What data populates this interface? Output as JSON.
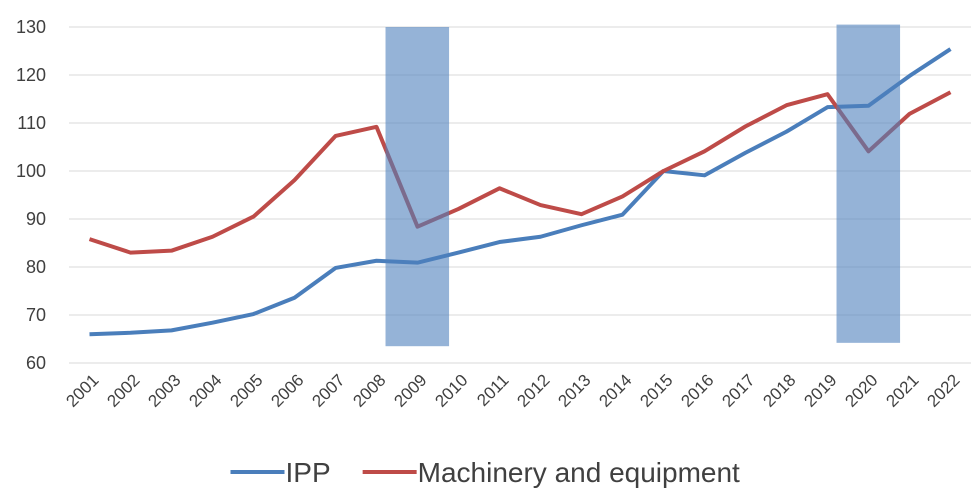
{
  "chart_data": {
    "type": "line",
    "categories": [
      "2001",
      "2002",
      "2003",
      "2004",
      "2005",
      "2006",
      "2007",
      "2008",
      "2009",
      "2010",
      "2011",
      "2012",
      "2013",
      "2014",
      "2015",
      "2016",
      "2017",
      "2018",
      "2019",
      "2020",
      "2021",
      "2022"
    ],
    "series": [
      {
        "name": "IPP",
        "color": "#4a7ebb",
        "values": [
          66,
          66.3,
          66.8,
          68.4,
          70.2,
          73.6,
          79.8,
          81.3,
          80.9,
          83,
          85.2,
          86.3,
          88.7,
          90.9,
          100,
          99.1,
          103.8,
          108.2,
          113.3,
          113.6,
          119.8,
          125.4
        ]
      },
      {
        "name": "Machinery and equipment",
        "color": "#be4b48",
        "values": [
          85.8,
          83,
          83.4,
          86.3,
          90.5,
          98.1,
          107.3,
          109.2,
          88.4,
          92.1,
          96.4,
          92.9,
          91,
          94.7,
          100,
          104.1,
          109.3,
          113.7,
          116,
          104.1,
          111.9,
          116.4
        ]
      }
    ],
    "bands": [
      {
        "category": "2009",
        "low": 63.5,
        "high": 130
      },
      {
        "category": "2020",
        "low": 64.2,
        "high": 130.5
      }
    ],
    "band_color": "#4f81bd",
    "ylim": [
      60,
      130
    ],
    "yticks": [
      60,
      70,
      80,
      90,
      100,
      110,
      120,
      130
    ],
    "grid": true,
    "legend": "bottom"
  }
}
